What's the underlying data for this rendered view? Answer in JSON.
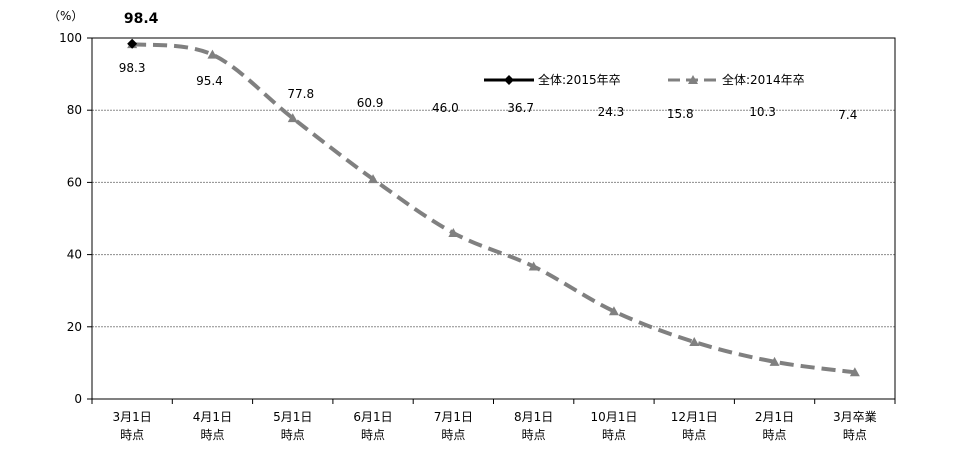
{
  "chart_data": {
    "type": "line",
    "unit_label": "（%）",
    "categories": [
      [
        "3月1日",
        "時点"
      ],
      [
        "4月1日",
        "時点"
      ],
      [
        "5月1日",
        "時点"
      ],
      [
        "6月1日",
        "時点"
      ],
      [
        "7月1日",
        "時点"
      ],
      [
        "8月1日",
        "時点"
      ],
      [
        "10月1日",
        "時点"
      ],
      [
        "12月1日",
        "時点"
      ],
      [
        "2月1日",
        "時点"
      ],
      [
        "3月卒業",
        "時点"
      ]
    ],
    "ylim": [
      0,
      100
    ],
    "yticks": [
      0,
      20,
      40,
      60,
      80,
      100
    ],
    "grid": true,
    "legend_position": "top-right",
    "series": [
      {
        "name": "全体:2015年卒",
        "color": "#000000",
        "style": "solid",
        "marker": "diamond",
        "values": [
          98.4,
          null,
          null,
          null,
          null,
          null,
          null,
          null,
          null,
          null
        ],
        "labels": [
          "98.4",
          "",
          "",
          "",
          "",
          "",
          "",
          "",
          "",
          ""
        ]
      },
      {
        "name": "全体:2014年卒",
        "color": "#808080",
        "style": "dashed",
        "marker": "triangle",
        "values": [
          98.3,
          95.4,
          77.8,
          60.9,
          46.0,
          36.7,
          24.3,
          15.8,
          10.3,
          7.4
        ],
        "labels": [
          "98.3",
          "95.4",
          "77.8",
          "60.9",
          "46.0",
          "36.7",
          "24.3",
          "15.8",
          "10.3",
          "7.4"
        ]
      }
    ]
  }
}
